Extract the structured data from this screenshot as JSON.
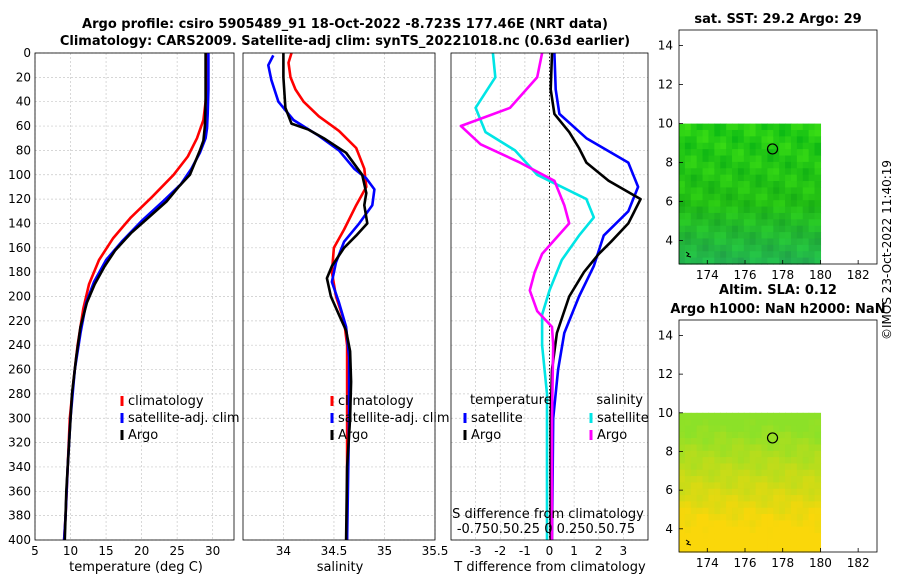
{
  "titles": {
    "line1": "Argo profile: csiro 5905489_91 18-Oct-2022 -8.723S 177.46E (NRT data)",
    "line2": "Climatology: CARS2009. Satellite-adj clim: synTS_20221018.nc (0.63d earlier)"
  },
  "stamp": "©IMOS 23-Oct-2022 11:40:19",
  "colors": {
    "climatology": "#ff0000",
    "satellite": "#0000ff",
    "argo": "#000000",
    "sat_salinity": "#00e5e5",
    "argo_salinity": "#ff00ff"
  },
  "depth_axis": {
    "ylim": [
      0,
      400
    ],
    "ticks": [
      "0",
      "20",
      "40",
      "60",
      "80",
      "100",
      "120",
      "140",
      "160",
      "180",
      "200",
      "220",
      "240",
      "260",
      "280",
      "300",
      "320",
      "340",
      "360",
      "380",
      "400"
    ]
  },
  "chart_data": [
    {
      "type": "line",
      "id": "temperature",
      "xlabel": "temperature (deg C)",
      "ylabel": "depth",
      "xlim": [
        5,
        33
      ],
      "xticks": [
        "5",
        "10",
        "15",
        "20",
        "25",
        "30"
      ],
      "xtick_values": [
        5,
        10,
        15,
        20,
        25,
        30
      ],
      "legend": [
        "climatology",
        "satellite-adj. clim",
        "Argo"
      ],
      "series": [
        {
          "name": "climatology",
          "color": "#ff0000",
          "points": [
            [
              29.2,
              0
            ],
            [
              29.2,
              20
            ],
            [
              29.0,
              40
            ],
            [
              28.7,
              55
            ],
            [
              27.8,
              70
            ],
            [
              26.5,
              85
            ],
            [
              24.5,
              100
            ],
            [
              21.5,
              118
            ],
            [
              18.5,
              135
            ],
            [
              16.0,
              152
            ],
            [
              14.0,
              170
            ],
            [
              12.6,
              190
            ],
            [
              11.8,
              210
            ],
            [
              11.0,
              240
            ],
            [
              10.4,
              270
            ],
            [
              9.9,
              300
            ],
            [
              9.6,
              340
            ],
            [
              9.3,
              380
            ],
            [
              9.1,
              400
            ]
          ]
        },
        {
          "name": "satellite-adj. clim",
          "color": "#0000ff",
          "points": [
            [
              29.4,
              0
            ],
            [
              29.4,
              30
            ],
            [
              29.3,
              50
            ],
            [
              29.2,
              62
            ],
            [
              29.0,
              70
            ],
            [
              28.2,
              82
            ],
            [
              27.0,
              95
            ],
            [
              25.5,
              108
            ],
            [
              23.0,
              122
            ],
            [
              20.0,
              138
            ],
            [
              17.2,
              155
            ],
            [
              15.0,
              170
            ],
            [
              13.3,
              188
            ],
            [
              12.2,
              205
            ],
            [
              11.4,
              230
            ],
            [
              10.6,
              260
            ],
            [
              10.0,
              300
            ],
            [
              9.6,
              340
            ],
            [
              9.3,
              380
            ],
            [
              9.1,
              400
            ]
          ]
        },
        {
          "name": "Argo",
          "color": "#000000",
          "points": [
            [
              29.0,
              0
            ],
            [
              29.0,
              40
            ],
            [
              28.9,
              60
            ],
            [
              28.7,
              72
            ],
            [
              28.2,
              80
            ],
            [
              27.5,
              90
            ],
            [
              26.8,
              100
            ],
            [
              25.2,
              110
            ],
            [
              23.5,
              122
            ],
            [
              21.0,
              135
            ],
            [
              18.5,
              148
            ],
            [
              16.3,
              162
            ],
            [
              14.8,
              175
            ],
            [
              13.4,
              190
            ],
            [
              12.3,
              205
            ],
            [
              11.4,
              225
            ],
            [
              10.8,
              250
            ],
            [
              10.2,
              280
            ],
            [
              9.8,
              320
            ],
            [
              9.4,
              360
            ],
            [
              9.2,
              400
            ]
          ]
        }
      ]
    },
    {
      "type": "line",
      "id": "salinity",
      "xlabel": "salinity",
      "xlim": [
        33.6,
        35.5
      ],
      "xticks": [
        "34",
        "34.5",
        "35",
        "35.5"
      ],
      "xtick_values": [
        34,
        34.5,
        35,
        35.5
      ],
      "legend": [
        "climatology",
        "satellite-adj. clim",
        "Argo"
      ],
      "series": [
        {
          "name": "climatology",
          "color": "#ff0000",
          "points": [
            [
              34.08,
              0
            ],
            [
              34.05,
              8
            ],
            [
              34.07,
              20
            ],
            [
              34.12,
              30
            ],
            [
              34.2,
              40
            ],
            [
              34.35,
              52
            ],
            [
              34.55,
              64
            ],
            [
              34.72,
              78
            ],
            [
              34.8,
              95
            ],
            [
              34.82,
              110
            ],
            [
              34.72,
              125
            ],
            [
              34.6,
              145
            ],
            [
              34.5,
              160
            ],
            [
              34.48,
              180
            ],
            [
              34.52,
              200
            ],
            [
              34.6,
              220
            ],
            [
              34.63,
              240
            ],
            [
              34.63,
              300
            ],
            [
              34.63,
              400
            ]
          ]
        },
        {
          "name": "satellite-adj. clim",
          "color": "#0000ff",
          "points": [
            [
              33.9,
              2
            ],
            [
              33.85,
              10
            ],
            [
              33.88,
              22
            ],
            [
              33.95,
              40
            ],
            [
              34.1,
              55
            ],
            [
              34.35,
              68
            ],
            [
              34.55,
              80
            ],
            [
              34.7,
              95
            ],
            [
              34.82,
              103
            ],
            [
              34.9,
              112
            ],
            [
              34.88,
              125
            ],
            [
              34.75,
              140
            ],
            [
              34.6,
              155
            ],
            [
              34.52,
              172
            ],
            [
              34.48,
              188
            ],
            [
              34.55,
              205
            ],
            [
              34.62,
              225
            ],
            [
              34.65,
              250
            ],
            [
              34.65,
              300
            ],
            [
              34.63,
              400
            ]
          ]
        },
        {
          "name": "Argo",
          "color": "#000000",
          "points": [
            [
              34.0,
              0
            ],
            [
              34.0,
              20
            ],
            [
              34.02,
              45
            ],
            [
              34.08,
              58
            ],
            [
              34.25,
              63
            ],
            [
              34.4,
              70
            ],
            [
              34.62,
              82
            ],
            [
              34.78,
              100
            ],
            [
              34.82,
              115
            ],
            [
              34.8,
              125
            ],
            [
              34.83,
              140
            ],
            [
              34.72,
              150
            ],
            [
              34.6,
              160
            ],
            [
              34.48,
              175
            ],
            [
              34.43,
              185
            ],
            [
              34.47,
              200
            ],
            [
              34.55,
              215
            ],
            [
              34.62,
              228
            ],
            [
              34.66,
              245
            ],
            [
              34.67,
              270
            ],
            [
              34.66,
              300
            ],
            [
              34.63,
              340
            ],
            [
              34.62,
              400
            ]
          ]
        }
      ]
    },
    {
      "type": "line",
      "id": "difference",
      "xlabel": "T difference from climatology",
      "xlim": [
        -4,
        4
      ],
      "xticks": [
        "-3",
        "-2",
        "-1",
        "0",
        "1",
        "2",
        "3"
      ],
      "xtick_values": [
        -3,
        -2,
        -1,
        0,
        1,
        2,
        3
      ],
      "secondary_xlabel": "S difference from climatology",
      "secondary_xticks": "-0.750.50.25 0 0.250.50.75",
      "legend_groups": [
        {
          "title": "temperature",
          "entries": [
            "satellite",
            "Argo"
          ]
        },
        {
          "title": "salinity",
          "entries": [
            "satellite",
            "Argo"
          ]
        }
      ],
      "series": [
        {
          "name": "temperature satellite",
          "color": "#0000ff",
          "points": [
            [
              0.2,
              0
            ],
            [
              0.25,
              30
            ],
            [
              0.4,
              50
            ],
            [
              1.5,
              70
            ],
            [
              3.2,
              90
            ],
            [
              3.6,
              110
            ],
            [
              3.2,
              130
            ],
            [
              2.2,
              150
            ],
            [
              1.8,
              175
            ],
            [
              1.2,
              200
            ],
            [
              0.6,
              230
            ],
            [
              0.35,
              260
            ],
            [
              0.15,
              300
            ],
            [
              0.1,
              400
            ]
          ]
        },
        {
          "name": "temperature Argo",
          "color": "#000000",
          "points": [
            [
              0.1,
              0
            ],
            [
              0.05,
              30
            ],
            [
              0.2,
              50
            ],
            [
              0.8,
              65
            ],
            [
              1.2,
              78
            ],
            [
              1.5,
              90
            ],
            [
              2.4,
              105
            ],
            [
              3.7,
              120
            ],
            [
              3.2,
              140
            ],
            [
              2.5,
              155
            ],
            [
              2.0,
              165
            ],
            [
              1.4,
              180
            ],
            [
              0.8,
              200
            ],
            [
              0.3,
              230
            ],
            [
              0.1,
              260
            ],
            [
              0.05,
              300
            ],
            [
              0.05,
              400
            ]
          ]
        },
        {
          "name": "salinity satellite",
          "color": "#00e5e5",
          "points": [
            [
              -2.3,
              0
            ],
            [
              -2.2,
              20
            ],
            [
              -3.0,
              45
            ],
            [
              -2.6,
              65
            ],
            [
              -1.4,
              80
            ],
            [
              -0.5,
              100
            ],
            [
              1.5,
              120
            ],
            [
              1.8,
              135
            ],
            [
              1.2,
              150
            ],
            [
              0.5,
              170
            ],
            [
              0.0,
              195
            ],
            [
              -0.3,
              215
            ],
            [
              -0.3,
              240
            ],
            [
              -0.1,
              280
            ],
            [
              -0.1,
              320
            ],
            [
              -0.1,
              400
            ]
          ]
        },
        {
          "name": "salinity Argo",
          "color": "#ff00ff",
          "points": [
            [
              -0.3,
              0
            ],
            [
              -0.5,
              20
            ],
            [
              -1.6,
              45
            ],
            [
              -3.6,
              60
            ],
            [
              -2.8,
              75
            ],
            [
              -1.2,
              90
            ],
            [
              0.2,
              105
            ],
            [
              0.6,
              125
            ],
            [
              0.8,
              140
            ],
            [
              -0.3,
              165
            ],
            [
              -0.6,
              180
            ],
            [
              -0.8,
              195
            ],
            [
              -0.5,
              212
            ],
            [
              0.1,
              225
            ],
            [
              0.15,
              240
            ],
            [
              0.1,
              300
            ],
            [
              0.1,
              400
            ]
          ]
        }
      ]
    },
    {
      "type": "heatmap",
      "id": "sst-map",
      "title": "sat. SST: 29.2 Argo: 29",
      "xlim": [
        172.5,
        183
      ],
      "ylim": [
        2.8,
        14.8
      ],
      "xticks": [
        "174",
        "176",
        "178",
        "180",
        "182"
      ],
      "xtick_values": [
        174,
        176,
        178,
        180,
        182
      ],
      "yticks": [
        "4",
        "6",
        "8",
        "10",
        "12",
        "14"
      ],
      "ytick_values": [
        4,
        6,
        8,
        10,
        12,
        14
      ],
      "data_extent": {
        "lon": [
          172.5,
          180
        ],
        "lat": [
          2.8,
          10
        ]
      },
      "argo_position": {
        "lon": 177.46,
        "lat": 8.7
      }
    },
    {
      "type": "heatmap",
      "id": "sla-map",
      "title": "Altim. SLA: 0.12",
      "subtitle": "Argo h1000: NaN h2000: NaN",
      "xlim": [
        172.5,
        183
      ],
      "ylim": [
        2.8,
        14.8
      ],
      "xticks": [
        "174",
        "176",
        "178",
        "180",
        "182"
      ],
      "xtick_values": [
        174,
        176,
        178,
        180,
        182
      ],
      "yticks": [
        "4",
        "6",
        "8",
        "10",
        "12",
        "14"
      ],
      "ytick_values": [
        4,
        6,
        8,
        10,
        12,
        14
      ],
      "data_extent": {
        "lon": [
          172.5,
          180
        ],
        "lat": [
          2.8,
          10
        ]
      },
      "argo_position": {
        "lon": 177.46,
        "lat": 8.7
      }
    }
  ]
}
